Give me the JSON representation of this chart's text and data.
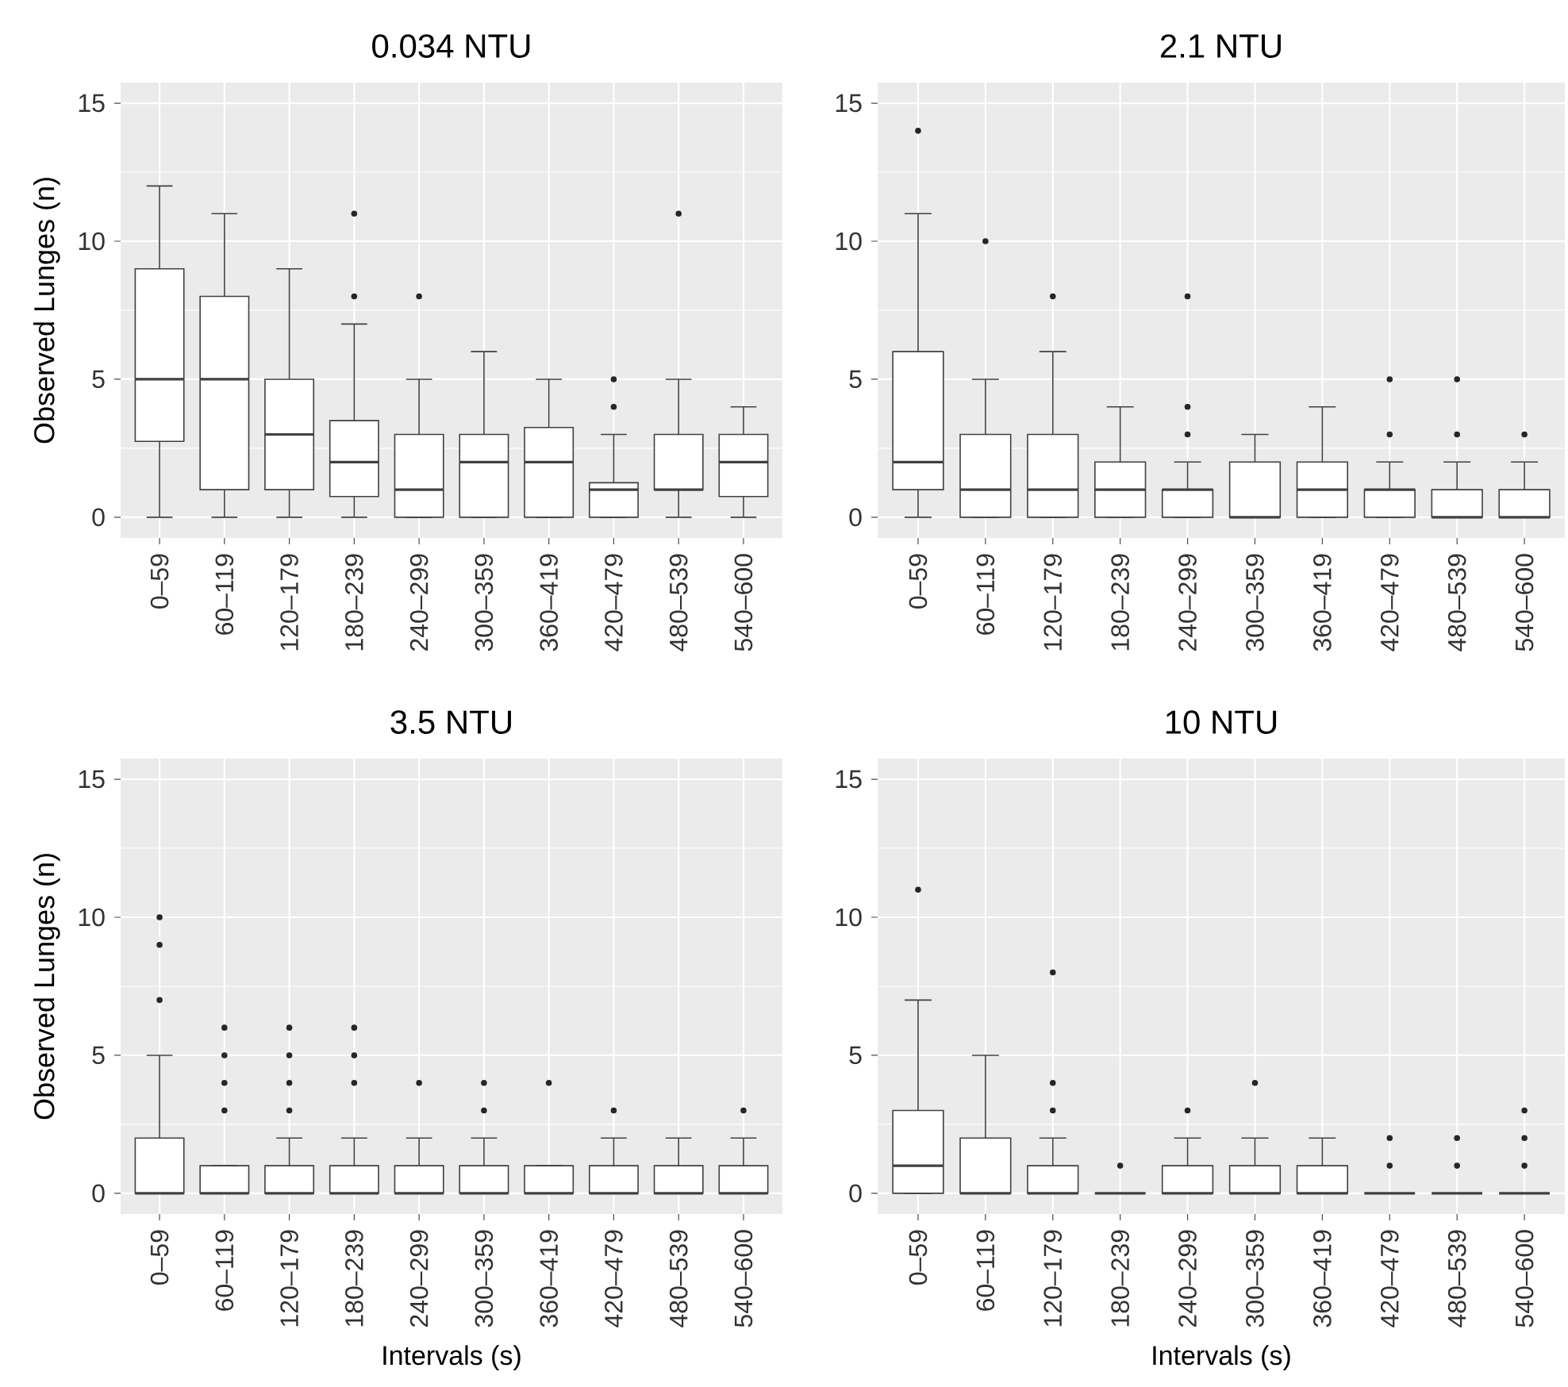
{
  "chart_data": [
    {
      "type": "box",
      "title": "0.034 NTU",
      "ylabel": "Observed Lunges (n)",
      "categories": [
        "0–59",
        "60–119",
        "120–179",
        "180–239",
        "240–299",
        "300–359",
        "360–419",
        "420–479",
        "480–539",
        "540–600"
      ],
      "ylim": [
        -0.75,
        15.75
      ],
      "yticks": [
        0,
        5,
        10,
        15
      ],
      "grid": true,
      "marker": "circle",
      "boxes": [
        {
          "low": 0,
          "q1": 2.75,
          "median": 5,
          "q3": 9,
          "high": 12
        },
        {
          "low": 0,
          "q1": 1,
          "median": 5,
          "q3": 8,
          "high": 11
        },
        {
          "low": 0,
          "q1": 1,
          "median": 3,
          "q3": 5,
          "high": 9
        },
        {
          "low": 0,
          "q1": 0.75,
          "median": 2,
          "q3": 3.5,
          "high": 7,
          "outliers": [
            8,
            11
          ]
        },
        {
          "low": 0,
          "q1": 0,
          "median": 1,
          "q3": 3,
          "high": 5,
          "outliers": [
            8
          ]
        },
        {
          "low": 0,
          "q1": 0,
          "median": 2,
          "q3": 3,
          "high": 6
        },
        {
          "low": 0,
          "q1": 0,
          "median": 2,
          "q3": 3.25,
          "high": 5
        },
        {
          "low": 0,
          "q1": 0,
          "median": 1,
          "q3": 1.25,
          "high": 3,
          "outliers": [
            4,
            5
          ]
        },
        {
          "low": 0,
          "q1": 1,
          "median": 1,
          "q3": 3,
          "high": 5,
          "outliers": [
            11
          ]
        },
        {
          "low": 0,
          "q1": 0.75,
          "median": 2,
          "q3": 3,
          "high": 4
        }
      ]
    },
    {
      "type": "box",
      "title": "2.1 NTU",
      "categories": [
        "0–59",
        "60–119",
        "120–179",
        "180–239",
        "240–299",
        "300–359",
        "360–419",
        "420–479",
        "480–539",
        "540–600"
      ],
      "ylim": [
        -0.75,
        15.75
      ],
      "yticks": [
        0,
        5,
        10,
        15
      ],
      "grid": true,
      "marker": "circle",
      "boxes": [
        {
          "low": 0,
          "q1": 1,
          "median": 2,
          "q3": 6,
          "high": 11,
          "outliers": [
            14
          ]
        },
        {
          "low": 0,
          "q1": 0,
          "median": 1,
          "q3": 3,
          "high": 5,
          "outliers": [
            10
          ]
        },
        {
          "low": 0,
          "q1": 0,
          "median": 1,
          "q3": 3,
          "high": 6,
          "outliers": [
            8
          ]
        },
        {
          "low": 0,
          "q1": 0,
          "median": 1,
          "q3": 2,
          "high": 4
        },
        {
          "low": 0,
          "q1": 0,
          "median": 1,
          "q3": 1,
          "high": 2,
          "outliers": [
            3,
            4,
            8
          ]
        },
        {
          "low": 0,
          "q1": 0,
          "median": 0,
          "q3": 2,
          "high": 3
        },
        {
          "low": 0,
          "q1": 0,
          "median": 1,
          "q3": 2,
          "high": 4
        },
        {
          "low": 0,
          "q1": 0,
          "median": 1,
          "q3": 1,
          "high": 2,
          "outliers": [
            3,
            5
          ]
        },
        {
          "low": 0,
          "q1": 0,
          "median": 0,
          "q3": 1,
          "high": 2,
          "outliers": [
            3,
            5
          ]
        },
        {
          "low": 0,
          "q1": 0,
          "median": 0,
          "q3": 1,
          "high": 2,
          "outliers": [
            3
          ]
        }
      ]
    },
    {
      "type": "box",
      "title": "3.5 NTU",
      "ylabel": "Observed Lunges (n)",
      "xlabel": "Intervals (s)",
      "categories": [
        "0–59",
        "60–119",
        "120–179",
        "180–239",
        "240–299",
        "300–359",
        "360–419",
        "420–479",
        "480–539",
        "540–600"
      ],
      "ylim": [
        -0.75,
        15.75
      ],
      "yticks": [
        0,
        5,
        10,
        15
      ],
      "grid": true,
      "marker": "circle",
      "boxes": [
        {
          "low": 0,
          "q1": 0,
          "median": 0,
          "q3": 2,
          "high": 5,
          "outliers": [
            7,
            9,
            10
          ]
        },
        {
          "low": 0,
          "q1": 0,
          "median": 0,
          "q3": 1,
          "high": 1,
          "outliers": [
            3,
            4,
            5,
            6
          ]
        },
        {
          "low": 0,
          "q1": 0,
          "median": 0,
          "q3": 1,
          "high": 2,
          "outliers": [
            3,
            4,
            5,
            6
          ]
        },
        {
          "low": 0,
          "q1": 0,
          "median": 0,
          "q3": 1,
          "high": 2,
          "outliers": [
            4,
            5,
            6
          ]
        },
        {
          "low": 0,
          "q1": 0,
          "median": 0,
          "q3": 1,
          "high": 2,
          "outliers": [
            4
          ]
        },
        {
          "low": 0,
          "q1": 0,
          "median": 0,
          "q3": 1,
          "high": 2,
          "outliers": [
            3,
            4
          ]
        },
        {
          "low": 0,
          "q1": 0,
          "median": 0,
          "q3": 1,
          "high": 1,
          "outliers": [
            4
          ]
        },
        {
          "low": 0,
          "q1": 0,
          "median": 0,
          "q3": 1,
          "high": 2,
          "outliers": [
            3
          ]
        },
        {
          "low": 0,
          "q1": 0,
          "median": 0,
          "q3": 1,
          "high": 2
        },
        {
          "low": 0,
          "q1": 0,
          "median": 0,
          "q3": 1,
          "high": 2,
          "outliers": [
            3
          ]
        }
      ]
    },
    {
      "type": "box",
      "title": "10 NTU",
      "xlabel": "Intervals (s)",
      "categories": [
        "0–59",
        "60–119",
        "120–179",
        "180–239",
        "240–299",
        "300–359",
        "360–419",
        "420–479",
        "480–539",
        "540–600"
      ],
      "ylim": [
        -0.75,
        15.75
      ],
      "yticks": [
        0,
        5,
        10,
        15
      ],
      "grid": true,
      "marker": "circle",
      "boxes": [
        {
          "low": 0,
          "q1": 0,
          "median": 1,
          "q3": 3,
          "high": 7,
          "outliers": [
            11
          ]
        },
        {
          "low": 0,
          "q1": 0,
          "median": 0,
          "q3": 2,
          "high": 5
        },
        {
          "low": 0,
          "q1": 0,
          "median": 0,
          "q3": 1,
          "high": 2,
          "outliers": [
            3,
            4,
            8
          ]
        },
        {
          "low": 0,
          "q1": 0,
          "median": 0,
          "q3": 0,
          "high": 0,
          "outliers": [
            1
          ]
        },
        {
          "low": 0,
          "q1": 0,
          "median": 0,
          "q3": 1,
          "high": 2,
          "outliers": [
            3
          ]
        },
        {
          "low": 0,
          "q1": 0,
          "median": 0,
          "q3": 1,
          "high": 2,
          "outliers": [
            4
          ]
        },
        {
          "low": 0,
          "q1": 0,
          "median": 0,
          "q3": 1,
          "high": 2
        },
        {
          "low": 0,
          "q1": 0,
          "median": 0,
          "q3": 0,
          "high": 0,
          "outliers": [
            1,
            2
          ]
        },
        {
          "low": 0,
          "q1": 0,
          "median": 0,
          "q3": 0,
          "high": 0,
          "outliers": [
            1,
            2
          ]
        },
        {
          "low": 0,
          "q1": 0,
          "median": 0,
          "q3": 0,
          "high": 0,
          "outliers": [
            1,
            2,
            3
          ]
        }
      ]
    }
  ]
}
